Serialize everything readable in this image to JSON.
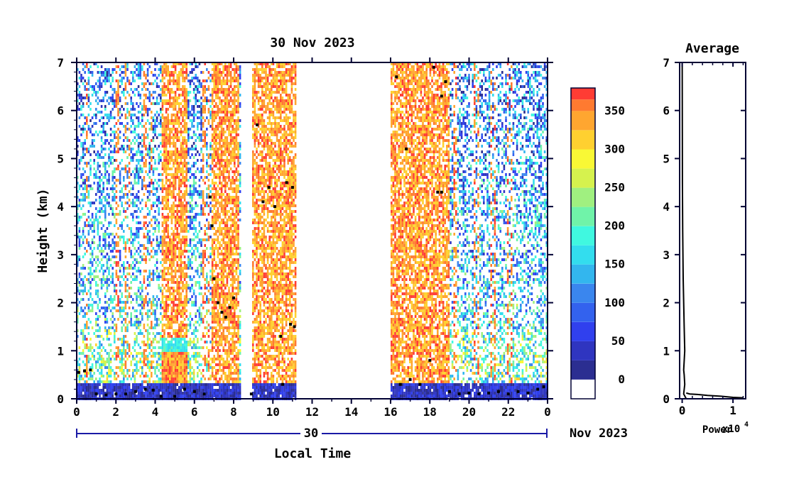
{
  "figure": {
    "title": "30 Nov 2023",
    "right_title": "Average",
    "date_label": "30",
    "date_suffix": "Nov 2023"
  },
  "chart_data": [
    {
      "type": "heatmap",
      "title": "30 Nov 2023",
      "xlabel": "Local Time",
      "ylabel": "Height (km)",
      "x_ticks": [
        "0",
        "2",
        "4",
        "6",
        "8",
        "10",
        "12",
        "14",
        "16",
        "18",
        "20",
        "22",
        "0"
      ],
      "y_ticks": [
        "0",
        "1",
        "2",
        "3",
        "4",
        "5",
        "6",
        "7"
      ],
      "xlim": [
        0,
        24
      ],
      "ylim": [
        0,
        7
      ],
      "colorbar": {
        "ticks": [
          "0",
          "50",
          "100",
          "150",
          "200",
          "250",
          "300",
          "350"
        ],
        "range": [
          -25,
          380
        ],
        "levels": [
          {
            "from": -25,
            "to": 0,
            "color": "#ffffff"
          },
          {
            "from": 0,
            "to": 25,
            "color": "#2b2e91"
          },
          {
            "from": 25,
            "to": 50,
            "color": "#2f35c0"
          },
          {
            "from": 50,
            "to": 75,
            "color": "#3040ee"
          },
          {
            "from": 75,
            "to": 100,
            "color": "#3362ee"
          },
          {
            "from": 100,
            "to": 125,
            "color": "#3a86ee"
          },
          {
            "from": 125,
            "to": 150,
            "color": "#33b6ee"
          },
          {
            "from": 150,
            "to": 175,
            "color": "#33ddee"
          },
          {
            "from": 175,
            "to": 200,
            "color": "#40f8e0"
          },
          {
            "from": 200,
            "to": 225,
            "color": "#70f3a9"
          },
          {
            "from": 225,
            "to": 250,
            "color": "#a0f080"
          },
          {
            "from": 250,
            "to": 275,
            "color": "#d6f24e"
          },
          {
            "from": 275,
            "to": 300,
            "color": "#f9f835"
          },
          {
            "from": 300,
            "to": 325,
            "color": "#ffd030"
          },
          {
            "from": 325,
            "to": 350,
            "color": "#ffa630"
          },
          {
            "from": 350,
            "to": 365,
            "color": "#ff7a30"
          },
          {
            "from": 365,
            "to": 380,
            "color": "#ff3c34"
          }
        ]
      },
      "data_gaps": [
        [
          8.3,
          8.9
        ],
        [
          11.2,
          16.0
        ]
      ],
      "strong_echo_periods": [
        [
          4.3,
          5.6
        ],
        [
          6.8,
          8.2
        ],
        [
          8.9,
          11.2
        ],
        [
          16.0,
          19.0
        ]
      ],
      "black_marker_height_km": [
        {
          "x": 0.1,
          "y": 0.55
        },
        {
          "x": 0.4,
          "y": 0.58
        },
        {
          "x": 0.7,
          "y": 0.6
        },
        {
          "x": 1.0,
          "y": 0.1
        },
        {
          "x": 1.5,
          "y": 0.08
        },
        {
          "x": 2.0,
          "y": 0.1
        },
        {
          "x": 2.5,
          "y": 0.1
        },
        {
          "x": 3.0,
          "y": 0.15
        },
        {
          "x": 3.5,
          "y": 0.2
        },
        {
          "x": 3.9,
          "y": 0.18
        },
        {
          "x": 4.3,
          "y": 0.05
        },
        {
          "x": 5.0,
          "y": 0.05
        },
        {
          "x": 5.5,
          "y": 0.2
        },
        {
          "x": 6.0,
          "y": 0.15
        },
        {
          "x": 6.5,
          "y": 0.1
        },
        {
          "x": 6.8,
          "y": 4.2
        },
        {
          "x": 6.9,
          "y": 3.6
        },
        {
          "x": 7.0,
          "y": 2.5
        },
        {
          "x": 7.2,
          "y": 2.0
        },
        {
          "x": 7.4,
          "y": 1.8
        },
        {
          "x": 7.6,
          "y": 1.7
        },
        {
          "x": 7.8,
          "y": 1.9
        },
        {
          "x": 8.0,
          "y": 2.1
        },
        {
          "x": 8.9,
          "y": 0.1
        },
        {
          "x": 9.2,
          "y": 5.7
        },
        {
          "x": 9.5,
          "y": 4.1
        },
        {
          "x": 9.8,
          "y": 4.4
        },
        {
          "x": 10.1,
          "y": 4.0
        },
        {
          "x": 10.4,
          "y": 1.3
        },
        {
          "x": 10.5,
          "y": 0.3
        },
        {
          "x": 10.7,
          "y": 4.5
        },
        {
          "x": 10.9,
          "y": 1.55
        },
        {
          "x": 11.1,
          "y": 1.5
        },
        {
          "x": 11.0,
          "y": 4.4
        },
        {
          "x": 16.3,
          "y": 6.7
        },
        {
          "x": 16.8,
          "y": 5.2
        },
        {
          "x": 16.5,
          "y": 0.3
        },
        {
          "x": 17.0,
          "y": 0.4
        },
        {
          "x": 17.5,
          "y": 0.3
        },
        {
          "x": 18.0,
          "y": 0.8
        },
        {
          "x": 18.2,
          "y": 6.9
        },
        {
          "x": 18.4,
          "y": 4.3
        },
        {
          "x": 18.6,
          "y": 6.3
        },
        {
          "x": 18.8,
          "y": 6.6
        },
        {
          "x": 18.6,
          "y": 4.3
        },
        {
          "x": 19.0,
          "y": 0.15
        },
        {
          "x": 19.5,
          "y": 0.1
        },
        {
          "x": 20.0,
          "y": 0.12
        },
        {
          "x": 20.5,
          "y": 0.1
        },
        {
          "x": 21.0,
          "y": 0.12
        },
        {
          "x": 21.5,
          "y": 0.15
        },
        {
          "x": 22.0,
          "y": 0.1
        },
        {
          "x": 22.5,
          "y": 0.15
        },
        {
          "x": 23.0,
          "y": 0.12
        },
        {
          "x": 23.5,
          "y": 0.2
        },
        {
          "x": 23.8,
          "y": 0.25
        }
      ]
    },
    {
      "type": "line",
      "title": "Average",
      "xlabel": "Power",
      "x_multiplier": "x10",
      "x_multiplier_exponent": "4",
      "ylabel": "",
      "x_ticks": [
        "0",
        "1"
      ],
      "y_ticks": [
        "0",
        "1",
        "2",
        "3",
        "4",
        "5",
        "6",
        "7"
      ],
      "xlim": [
        -0.05,
        1.25
      ],
      "ylim": [
        0,
        7
      ],
      "series": [
        {
          "x": [
            0.08,
            0.03,
            0.05,
            0.04,
            0.03,
            0.05,
            0.04,
            0.02,
            0.01,
            0.005,
            0.003,
            0.001
          ],
          "y": [
            0.0,
            0.1,
            0.3,
            0.5,
            0.6,
            1.0,
            1.5,
            2.5,
            3.5,
            4.5,
            5.5,
            7.0
          ]
        },
        {
          "x": [
            0.08,
            0.15,
            0.3,
            0.5,
            0.8,
            1.0,
            1.2
          ],
          "y": [
            0.12,
            0.1,
            0.09,
            0.07,
            0.05,
            0.03,
            0.02
          ]
        }
      ]
    }
  ]
}
